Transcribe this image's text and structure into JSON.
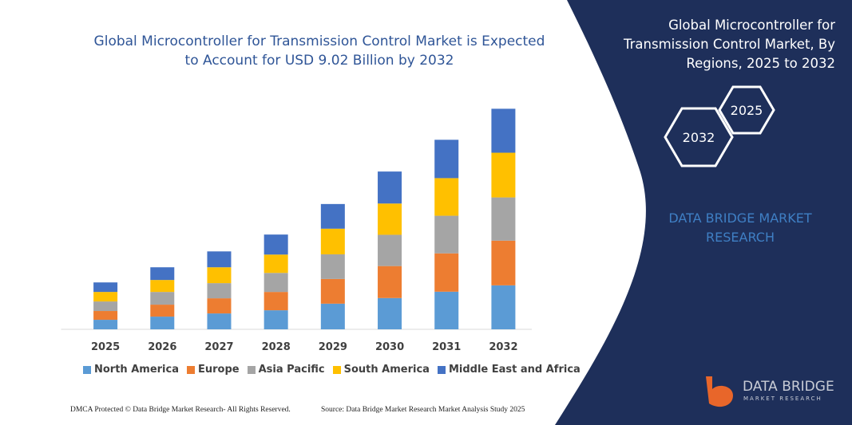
{
  "chart_data": {
    "type": "stacked-bar",
    "title": "Global Microcontroller for Transmission Control Market is Expected to Account for USD 9.02 Billion by 2032",
    "categories": [
      "2025",
      "2026",
      "2027",
      "2028",
      "2029",
      "2030",
      "2031",
      "2032"
    ],
    "series": [
      {
        "name": "North America",
        "color": "#5b9bd5",
        "values": [
          0.39,
          0.52,
          0.65,
          0.78,
          1.05,
          1.28,
          1.54,
          1.8
        ]
      },
      {
        "name": "Europe",
        "color": "#ed7d31",
        "values": [
          0.36,
          0.49,
          0.62,
          0.75,
          1.01,
          1.31,
          1.57,
          1.83
        ]
      },
      {
        "name": "Asia Pacific",
        "color": "#a5a5a5",
        "values": [
          0.39,
          0.52,
          0.62,
          0.78,
          1.01,
          1.28,
          1.54,
          1.77
        ]
      },
      {
        "name": "South America",
        "color": "#ffc000",
        "values": [
          0.39,
          0.49,
          0.65,
          0.75,
          1.05,
          1.28,
          1.54,
          1.83
        ]
      },
      {
        "name": "Middle East and Africa",
        "color": "#4472c4",
        "values": [
          0.39,
          0.52,
          0.65,
          0.82,
          1.01,
          1.31,
          1.57,
          1.8
        ]
      }
    ],
    "ylim": [
      0,
      9.5
    ]
  },
  "side_panel": {
    "title": "Global Microcontroller for Transmission Control Market, By Regions, 2025 to 2032",
    "hexagons": [
      "2025",
      "2032"
    ],
    "brand": "DATA BRIDGE MARKET RESEARCH"
  },
  "logo": {
    "name": "DATA BRIDGE",
    "tagline": "MARKET RESEARCH"
  },
  "footer": {
    "left": "DMCA Protected © Data Bridge Market Research- All Rights Reserved.",
    "right": "Source: Data Bridge Market Research Market Analysis Study 2025"
  }
}
